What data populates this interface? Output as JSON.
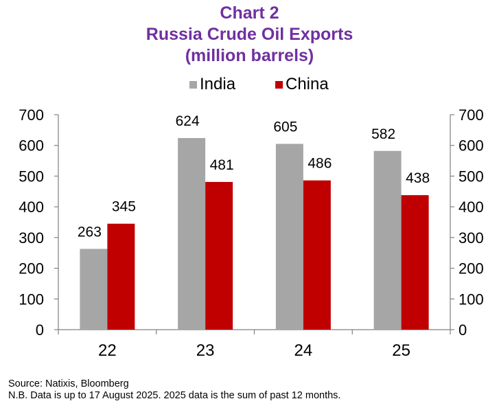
{
  "chart_data": {
    "type": "bar",
    "title": "Chart 2",
    "subtitle_lines": [
      "Russia Crude Oil Exports",
      "(million barrels)"
    ],
    "categories": [
      "22",
      "23",
      "24",
      "25"
    ],
    "series": [
      {
        "name": "India",
        "values": [
          263,
          624,
          605,
          582
        ],
        "color": "#a6a6a6"
      },
      {
        "name": "China",
        "values": [
          345,
          481,
          486,
          438
        ],
        "color": "#c00000"
      }
    ],
    "ylim": [
      0,
      700
    ],
    "yticks": [
      0,
      100,
      200,
      300,
      400,
      500,
      600,
      700
    ],
    "secondary_axis": true,
    "legend_position": "top-center",
    "grid": false
  },
  "footnotes": [
    "Source: Natixis, Bloomberg",
    "N.B. Data is up to 17 August 2025. 2025 data is the sum of past 12 months."
  ],
  "colors": {
    "title": "#7030a0",
    "india": "#a6a6a6",
    "china": "#c00000"
  }
}
